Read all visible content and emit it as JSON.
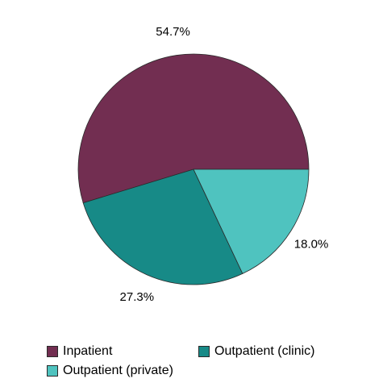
{
  "chart_data": {
    "type": "pie",
    "title": "",
    "categories": [
      "Inpatient",
      "Outpatient (clinic)",
      "Outpatient (private)"
    ],
    "values": [
      54.7,
      27.3,
      18.0
    ],
    "labels": [
      "54.7%",
      "27.3%",
      "18.0%"
    ],
    "colors": [
      "#722e51",
      "#178a87",
      "#4fc3bf"
    ],
    "legend_position": "bottom",
    "start_angle": "3 o'clock",
    "direction": "counter-clockwise"
  },
  "legend": {
    "items": [
      {
        "label": "Inpatient",
        "color": "#722e51"
      },
      {
        "label": "Outpatient (clinic)",
        "color": "#178a87"
      },
      {
        "label": "Outpatient (private)",
        "color": "#4fc3bf"
      }
    ]
  }
}
